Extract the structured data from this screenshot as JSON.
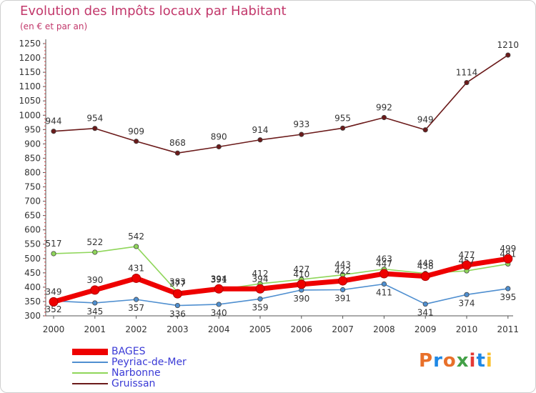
{
  "header": {
    "title": "Evolution des Impôts locaux par Habitant",
    "subtitle": "(en € et par an)"
  },
  "logo": {
    "text": "Proxiti",
    "colors": [
      "#e8702a",
      "#1e88e5",
      "#e8702a",
      "#43a047",
      "#e53935",
      "#1e88e5",
      "#fbc02d"
    ]
  },
  "chart_data": {
    "type": "line",
    "x": [
      2000,
      2001,
      2002,
      2003,
      2004,
      2005,
      2006,
      2007,
      2008,
      2009,
      2010,
      2011
    ],
    "ylim": [
      300,
      1250
    ],
    "yticks": [
      300,
      350,
      400,
      450,
      500,
      550,
      600,
      650,
      700,
      750,
      800,
      850,
      900,
      950,
      1000,
      1050,
      1100,
      1150,
      1200,
      1250
    ],
    "grid": false,
    "legend_position": "bottom-left",
    "series": [
      {
        "name": "Gruissan",
        "color": "#6b1a1a",
        "values": [
          944,
          954,
          909,
          868,
          890,
          914,
          933,
          955,
          992,
          949,
          1114,
          1210
        ]
      },
      {
        "name": "Peyriac-de-Mer",
        "color": "#4f8fd0",
        "values": [
          352,
          345,
          357,
          336,
          340,
          359,
          390,
          391,
          411,
          341,
          374,
          395
        ]
      },
      {
        "name": "Narbonne",
        "color": "#8fd65a",
        "values": [
          517,
          522,
          542,
          383,
          391,
          412,
          427,
          443,
          463,
          448,
          457,
          481
        ]
      },
      {
        "name": "BAGES",
        "color": "#ee0000",
        "values": [
          349,
          390,
          431,
          377,
          394,
          394,
          410,
          422,
          447,
          438,
          477,
          499
        ]
      }
    ]
  },
  "legend": {
    "items": [
      {
        "name": "BAGES",
        "color": "#ee0000",
        "thickness": 9
      },
      {
        "name": "Peyriac-de-Mer",
        "color": "#4f8fd0",
        "thickness": 2
      },
      {
        "name": "Narbonne",
        "color": "#8fd65a",
        "thickness": 2
      },
      {
        "name": "Gruissan",
        "color": "#6b1a1a",
        "thickness": 2
      }
    ]
  }
}
